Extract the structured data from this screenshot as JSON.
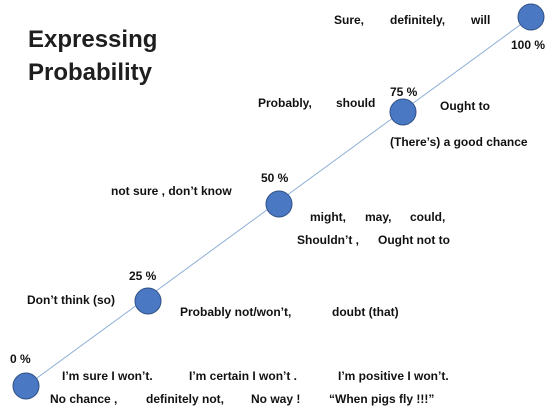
{
  "title": {
    "line1": "Expressing",
    "line2": "Probability"
  },
  "colors": {
    "node_fill": "#4a78c2",
    "node_stroke": "#2f4f85",
    "line": "#8fb0d6"
  },
  "levels": [
    {
      "percent": "0 %",
      "labels": [
        "I’m sure I won’t.",
        "I’m certain I won’t .",
        "I’m positive I won’t.",
        "No chance ,",
        "definitely not,",
        "No way !",
        "“When pigs fly !!!”"
      ]
    },
    {
      "percent": "25 %",
      "labels": [
        "Don’t think (so)",
        "Probably not/won’t,",
        "doubt (that)"
      ]
    },
    {
      "percent": "50 %",
      "labels": [
        "not sure , don’t know",
        "might,",
        "may,",
        "could,",
        "Shouldn’t ,",
        "Ought not to"
      ]
    },
    {
      "percent": "75 %",
      "labels": [
        "Probably,",
        "should",
        "Ought to",
        "(There’s) a good chance"
      ]
    },
    {
      "percent": "100 %",
      "labels": [
        "Sure,",
        "definitely,",
        "will"
      ]
    }
  ]
}
